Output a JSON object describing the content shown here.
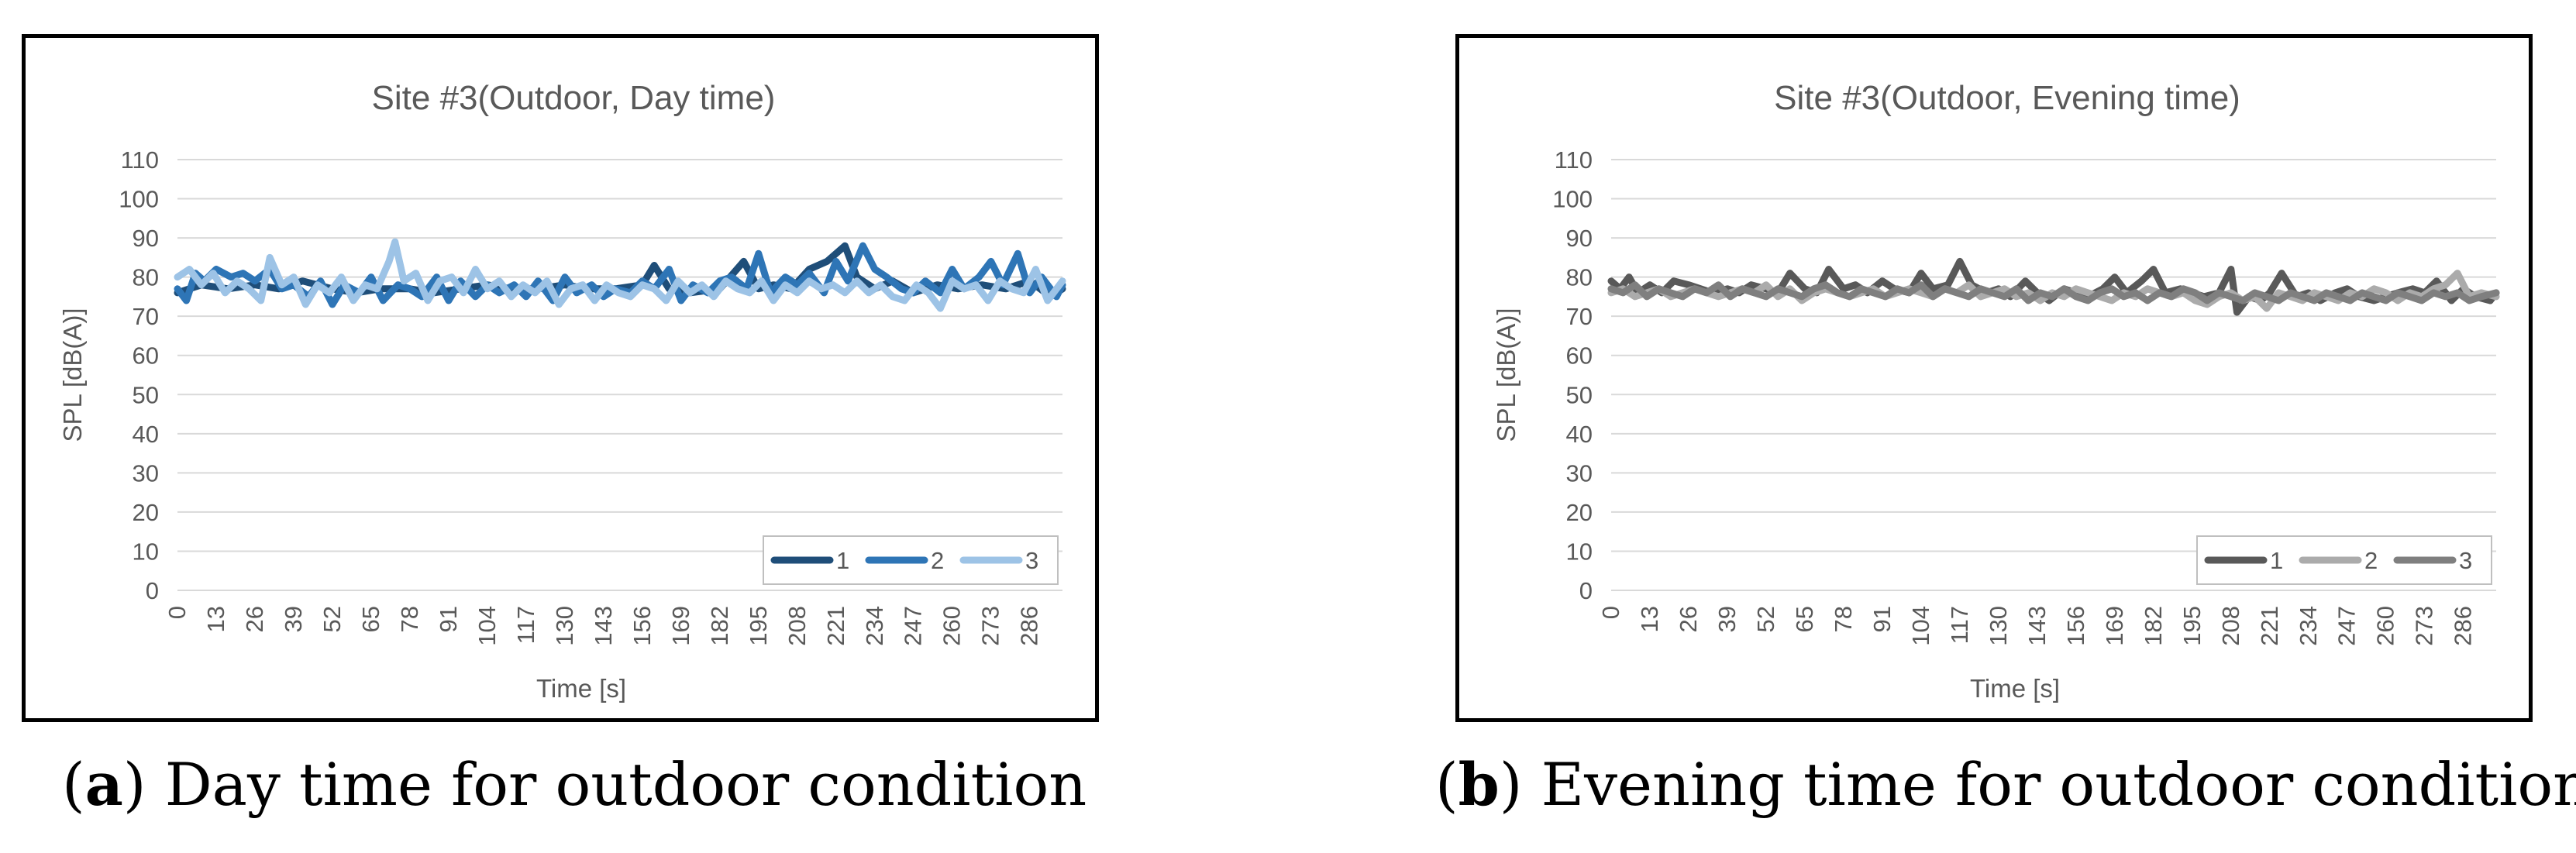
{
  "figure": {
    "panels": [
      {
        "caption": {
          "letter": "a",
          "text": "Day time for outdoor condition"
        },
        "colors": [
          "#1F4E79",
          "#2E75B6",
          "#9DC3E6"
        ]
      },
      {
        "caption": {
          "letter": "b",
          "text": "Evening time for outdoor condition"
        },
        "colors": [
          "#595959",
          "#ABABAB",
          "#7F7F7F"
        ]
      }
    ]
  },
  "chart_data": [
    {
      "type": "line",
      "title": "Site #3(Outdoor, Day time)",
      "xlabel": "Time [s]",
      "ylabel": "SPL [dB(A)]",
      "ylim": [
        0,
        110
      ],
      "yticks": [
        0,
        10,
        20,
        30,
        40,
        50,
        60,
        70,
        80,
        90,
        100,
        110
      ],
      "xticks": [
        0,
        13,
        26,
        39,
        52,
        65,
        78,
        91,
        104,
        117,
        130,
        143,
        156,
        169,
        182,
        195,
        208,
        221,
        234,
        247,
        260,
        273,
        286
      ],
      "xlim": [
        0,
        297
      ],
      "grid": true,
      "legend_position": "bottom-right",
      "series": [
        {
          "name": "1",
          "x": [
            0,
            8,
            17,
            26,
            34,
            42,
            52,
            60,
            68,
            78,
            86,
            95,
            104,
            112,
            121,
            130,
            138,
            147,
            156,
            160,
            165,
            172,
            182,
            190,
            195,
            200,
            206,
            212,
            218,
            224,
            228,
            234,
            240,
            247,
            255,
            262,
            270,
            278,
            286,
            293,
            297
          ],
          "values": [
            76,
            78,
            77,
            78,
            77,
            79,
            77,
            76,
            77,
            77,
            76,
            77,
            78,
            77,
            77,
            78,
            77,
            77,
            78,
            83,
            77,
            76,
            77,
            84,
            77,
            78,
            77,
            82,
            84,
            88,
            80,
            77,
            79,
            76,
            78,
            77,
            78,
            77,
            79,
            75,
            77
          ]
        },
        {
          "name": "2",
          "x": [
            0,
            3,
            6,
            9,
            13,
            18,
            22,
            26,
            31,
            35,
            39,
            44,
            48,
            52,
            56,
            61,
            65,
            69,
            74,
            78,
            82,
            87,
            91,
            95,
            100,
            104,
            108,
            113,
            117,
            121,
            126,
            130,
            134,
            139,
            143,
            147,
            152,
            156,
            160,
            165,
            169,
            173,
            178,
            182,
            186,
            191,
            195,
            199,
            204,
            208,
            212,
            217,
            221,
            225,
            230,
            234,
            238,
            243,
            247,
            251,
            256,
            260,
            264,
            269,
            273,
            277,
            282,
            286,
            290,
            295,
            297
          ],
          "values": [
            77,
            74,
            81,
            79,
            82,
            80,
            81,
            79,
            82,
            77,
            78,
            75,
            79,
            73,
            78,
            76,
            80,
            74,
            78,
            77,
            75,
            80,
            74,
            79,
            75,
            78,
            76,
            78,
            75,
            79,
            74,
            80,
            76,
            78,
            75,
            77,
            76,
            79,
            77,
            82,
            74,
            78,
            76,
            79,
            80,
            77,
            86,
            76,
            80,
            78,
            81,
            76,
            84,
            79,
            88,
            82,
            80,
            77,
            76,
            79,
            76,
            82,
            77,
            80,
            84,
            78,
            86,
            76,
            80,
            75,
            78
          ]
        },
        {
          "name": "3",
          "x": [
            0,
            4,
            8,
            12,
            16,
            20,
            24,
            28,
            31,
            35,
            39,
            43,
            47,
            51,
            55,
            59,
            63,
            67,
            71,
            73,
            76,
            80,
            84,
            88,
            92,
            96,
            100,
            104,
            108,
            112,
            116,
            120,
            124,
            128,
            132,
            136,
            140,
            144,
            148,
            152,
            156,
            160,
            164,
            168,
            172,
            176,
            180,
            184,
            188,
            192,
            196,
            200,
            204,
            208,
            212,
            216,
            220,
            224,
            228,
            232,
            236,
            240,
            244,
            248,
            252,
            256,
            260,
            264,
            268,
            272,
            276,
            280,
            284,
            288,
            292,
            297
          ],
          "values": [
            80,
            82,
            78,
            81,
            76,
            79,
            77,
            74,
            85,
            78,
            80,
            73,
            78,
            76,
            80,
            74,
            78,
            77,
            84,
            89,
            79,
            81,
            74,
            79,
            80,
            76,
            82,
            77,
            79,
            75,
            78,
            76,
            79,
            73,
            77,
            78,
            74,
            78,
            76,
            75,
            78,
            77,
            74,
            79,
            76,
            78,
            75,
            79,
            77,
            76,
            79,
            74,
            78,
            76,
            79,
            77,
            78,
            76,
            79,
            76,
            78,
            75,
            74,
            78,
            76,
            72,
            79,
            77,
            78,
            74,
            79,
            77,
            76,
            82,
            74,
            79
          ]
        }
      ]
    },
    {
      "type": "line",
      "title": "Site #3(Outdoor, Evening time)",
      "xlabel": "Time [s]",
      "ylabel": "SPL [dB(A)]",
      "ylim": [
        0,
        110
      ],
      "yticks": [
        0,
        10,
        20,
        30,
        40,
        50,
        60,
        70,
        80,
        90,
        100,
        110
      ],
      "xticks": [
        0,
        13,
        26,
        39,
        52,
        65,
        78,
        91,
        104,
        117,
        130,
        143,
        156,
        169,
        182,
        195,
        208,
        221,
        234,
        247,
        260,
        273,
        286
      ],
      "xlim": [
        0,
        297
      ],
      "grid": true,
      "legend_position": "bottom-right",
      "series": [
        {
          "name": "1",
          "x": [
            0,
            3,
            6,
            9,
            13,
            17,
            21,
            26,
            30,
            34,
            39,
            43,
            47,
            52,
            56,
            60,
            65,
            69,
            73,
            78,
            82,
            86,
            91,
            95,
            100,
            104,
            108,
            113,
            117,
            121,
            126,
            130,
            134,
            139,
            143,
            147,
            152,
            156,
            160,
            165,
            169,
            173,
            178,
            182,
            186,
            191,
            195,
            199,
            204,
            208,
            210,
            214,
            218,
            221,
            225,
            230,
            234,
            238,
            243,
            247,
            251,
            256,
            260,
            264,
            269,
            273,
            277,
            282,
            286,
            290,
            295,
            297
          ],
          "values": [
            79,
            77,
            80,
            76,
            78,
            76,
            79,
            78,
            77,
            76,
            77,
            76,
            78,
            77,
            76,
            81,
            77,
            76,
            82,
            77,
            78,
            76,
            79,
            77,
            76,
            81,
            77,
            78,
            84,
            78,
            76,
            77,
            75,
            79,
            76,
            74,
            77,
            76,
            75,
            77,
            80,
            76,
            79,
            82,
            76,
            77,
            76,
            75,
            76,
            82,
            71,
            75,
            74,
            76,
            81,
            75,
            76,
            74,
            76,
            77,
            75,
            74,
            75,
            76,
            77,
            76,
            79,
            74,
            77,
            75,
            74,
            76
          ]
        },
        {
          "name": "2",
          "x": [
            0,
            4,
            8,
            12,
            16,
            20,
            24,
            28,
            32,
            36,
            40,
            44,
            48,
            52,
            56,
            60,
            64,
            68,
            72,
            76,
            80,
            84,
            88,
            92,
            96,
            100,
            104,
            108,
            112,
            116,
            120,
            124,
            128,
            132,
            136,
            140,
            144,
            148,
            152,
            156,
            160,
            164,
            168,
            172,
            176,
            180,
            184,
            188,
            192,
            196,
            200,
            204,
            208,
            212,
            216,
            220,
            224,
            228,
            232,
            236,
            240,
            244,
            248,
            252,
            256,
            260,
            264,
            268,
            272,
            276,
            280,
            284,
            288,
            292,
            297
          ],
          "values": [
            76,
            77,
            75,
            76,
            77,
            75,
            76,
            77,
            76,
            75,
            76,
            77,
            76,
            78,
            75,
            77,
            74,
            76,
            77,
            76,
            75,
            76,
            77,
            75,
            76,
            77,
            76,
            75,
            77,
            76,
            78,
            75,
            76,
            77,
            75,
            76,
            74,
            76,
            75,
            77,
            76,
            75,
            74,
            76,
            75,
            77,
            76,
            75,
            76,
            74,
            73,
            75,
            76,
            74,
            75,
            72,
            76,
            75,
            74,
            76,
            75,
            74,
            76,
            75,
            77,
            76,
            74,
            76,
            75,
            77,
            78,
            81,
            75,
            76,
            75
          ]
        },
        {
          "name": "3",
          "x": [
            0,
            4,
            8,
            12,
            16,
            20,
            24,
            28,
            32,
            36,
            40,
            44,
            48,
            52,
            56,
            60,
            64,
            68,
            72,
            76,
            80,
            84,
            88,
            92,
            96,
            100,
            104,
            108,
            112,
            116,
            120,
            124,
            128,
            132,
            136,
            140,
            144,
            148,
            152,
            156,
            160,
            164,
            168,
            172,
            176,
            180,
            184,
            188,
            192,
            196,
            200,
            204,
            208,
            212,
            216,
            220,
            224,
            228,
            232,
            236,
            240,
            244,
            248,
            252,
            256,
            260,
            264,
            268,
            272,
            276,
            280,
            284,
            288,
            292,
            297
          ],
          "values": [
            77,
            76,
            78,
            75,
            77,
            76,
            75,
            77,
            76,
            78,
            75,
            77,
            76,
            75,
            77,
            76,
            75,
            77,
            78,
            76,
            75,
            77,
            76,
            75,
            77,
            76,
            78,
            75,
            77,
            76,
            75,
            77,
            76,
            75,
            77,
            74,
            76,
            75,
            77,
            75,
            74,
            76,
            77,
            75,
            76,
            74,
            76,
            75,
            77,
            76,
            74,
            76,
            75,
            74,
            76,
            75,
            74,
            76,
            75,
            74,
            76,
            75,
            74,
            76,
            75,
            74,
            76,
            75,
            74,
            76,
            75,
            76,
            74,
            75,
            76
          ]
        }
      ]
    }
  ]
}
